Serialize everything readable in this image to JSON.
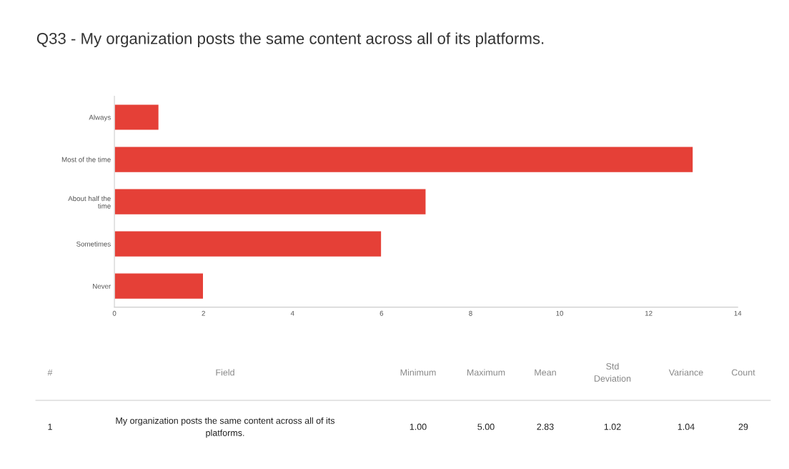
{
  "chart_data": {
    "type": "bar",
    "orientation": "horizontal",
    "title": "Q33 - My organization posts the same content across all of its platforms.",
    "categories": [
      "Always",
      "Most of the time",
      "About half the\ntime",
      "Sometimes",
      "Never"
    ],
    "values": [
      1,
      13,
      7,
      6,
      2
    ],
    "color": "#e54037",
    "xlim": [
      0,
      14
    ],
    "xticks": [
      0,
      2,
      4,
      6,
      8,
      10,
      12,
      14
    ],
    "grid": false,
    "legend": false,
    "annotations": [
      "#",
      "Field",
      "Minimum",
      "Maximum",
      "Mean",
      "Std\nDeviation",
      "Variance",
      "Count",
      "1",
      "My organization posts the same content across all of its\nplatforms.",
      "1.00",
      "5.00",
      "2.83",
      "1.02",
      "1.04",
      "29"
    ]
  }
}
